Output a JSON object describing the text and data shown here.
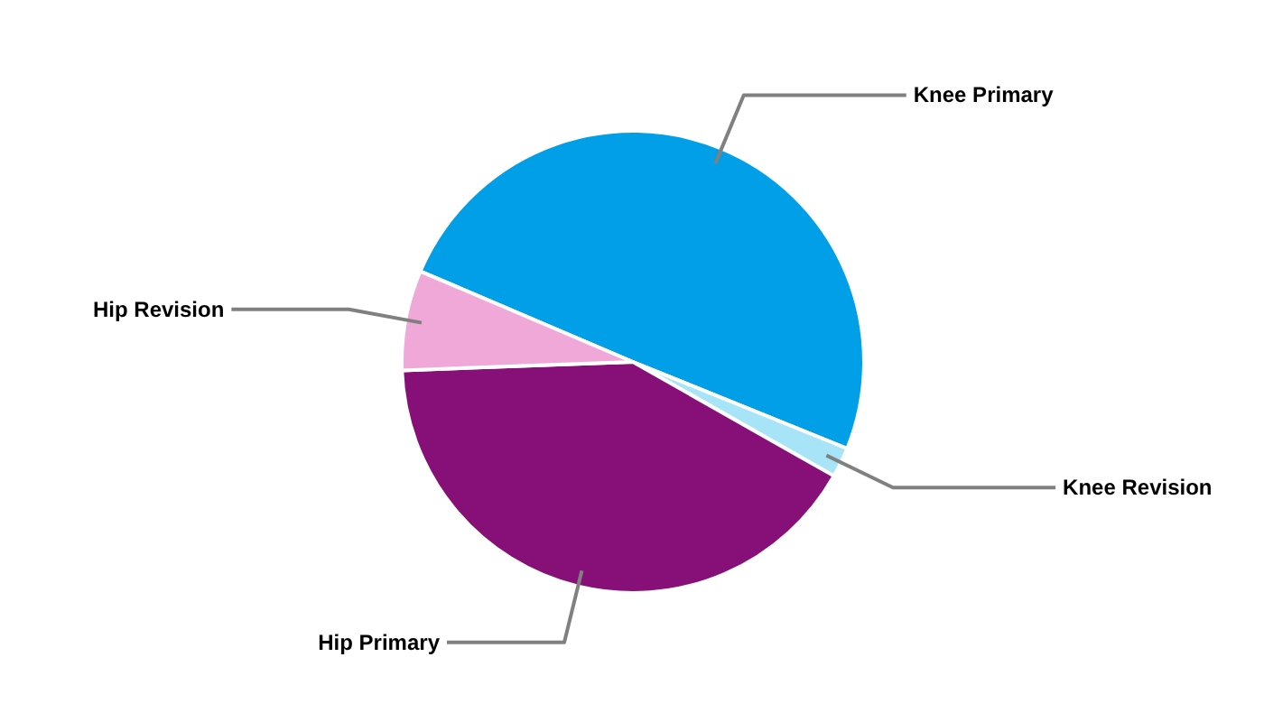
{
  "chart_data": {
    "type": "pie",
    "categories": [
      "Knee Primary",
      "Knee Revision",
      "Hip Primary",
      "Hip Revision"
    ],
    "values": [
      49.7,
      2.1,
      41.2,
      7.0
    ],
    "colors": [
      "#009fe8",
      "#a8e4f8",
      "#870f78",
      "#f0a8d8"
    ]
  }
}
